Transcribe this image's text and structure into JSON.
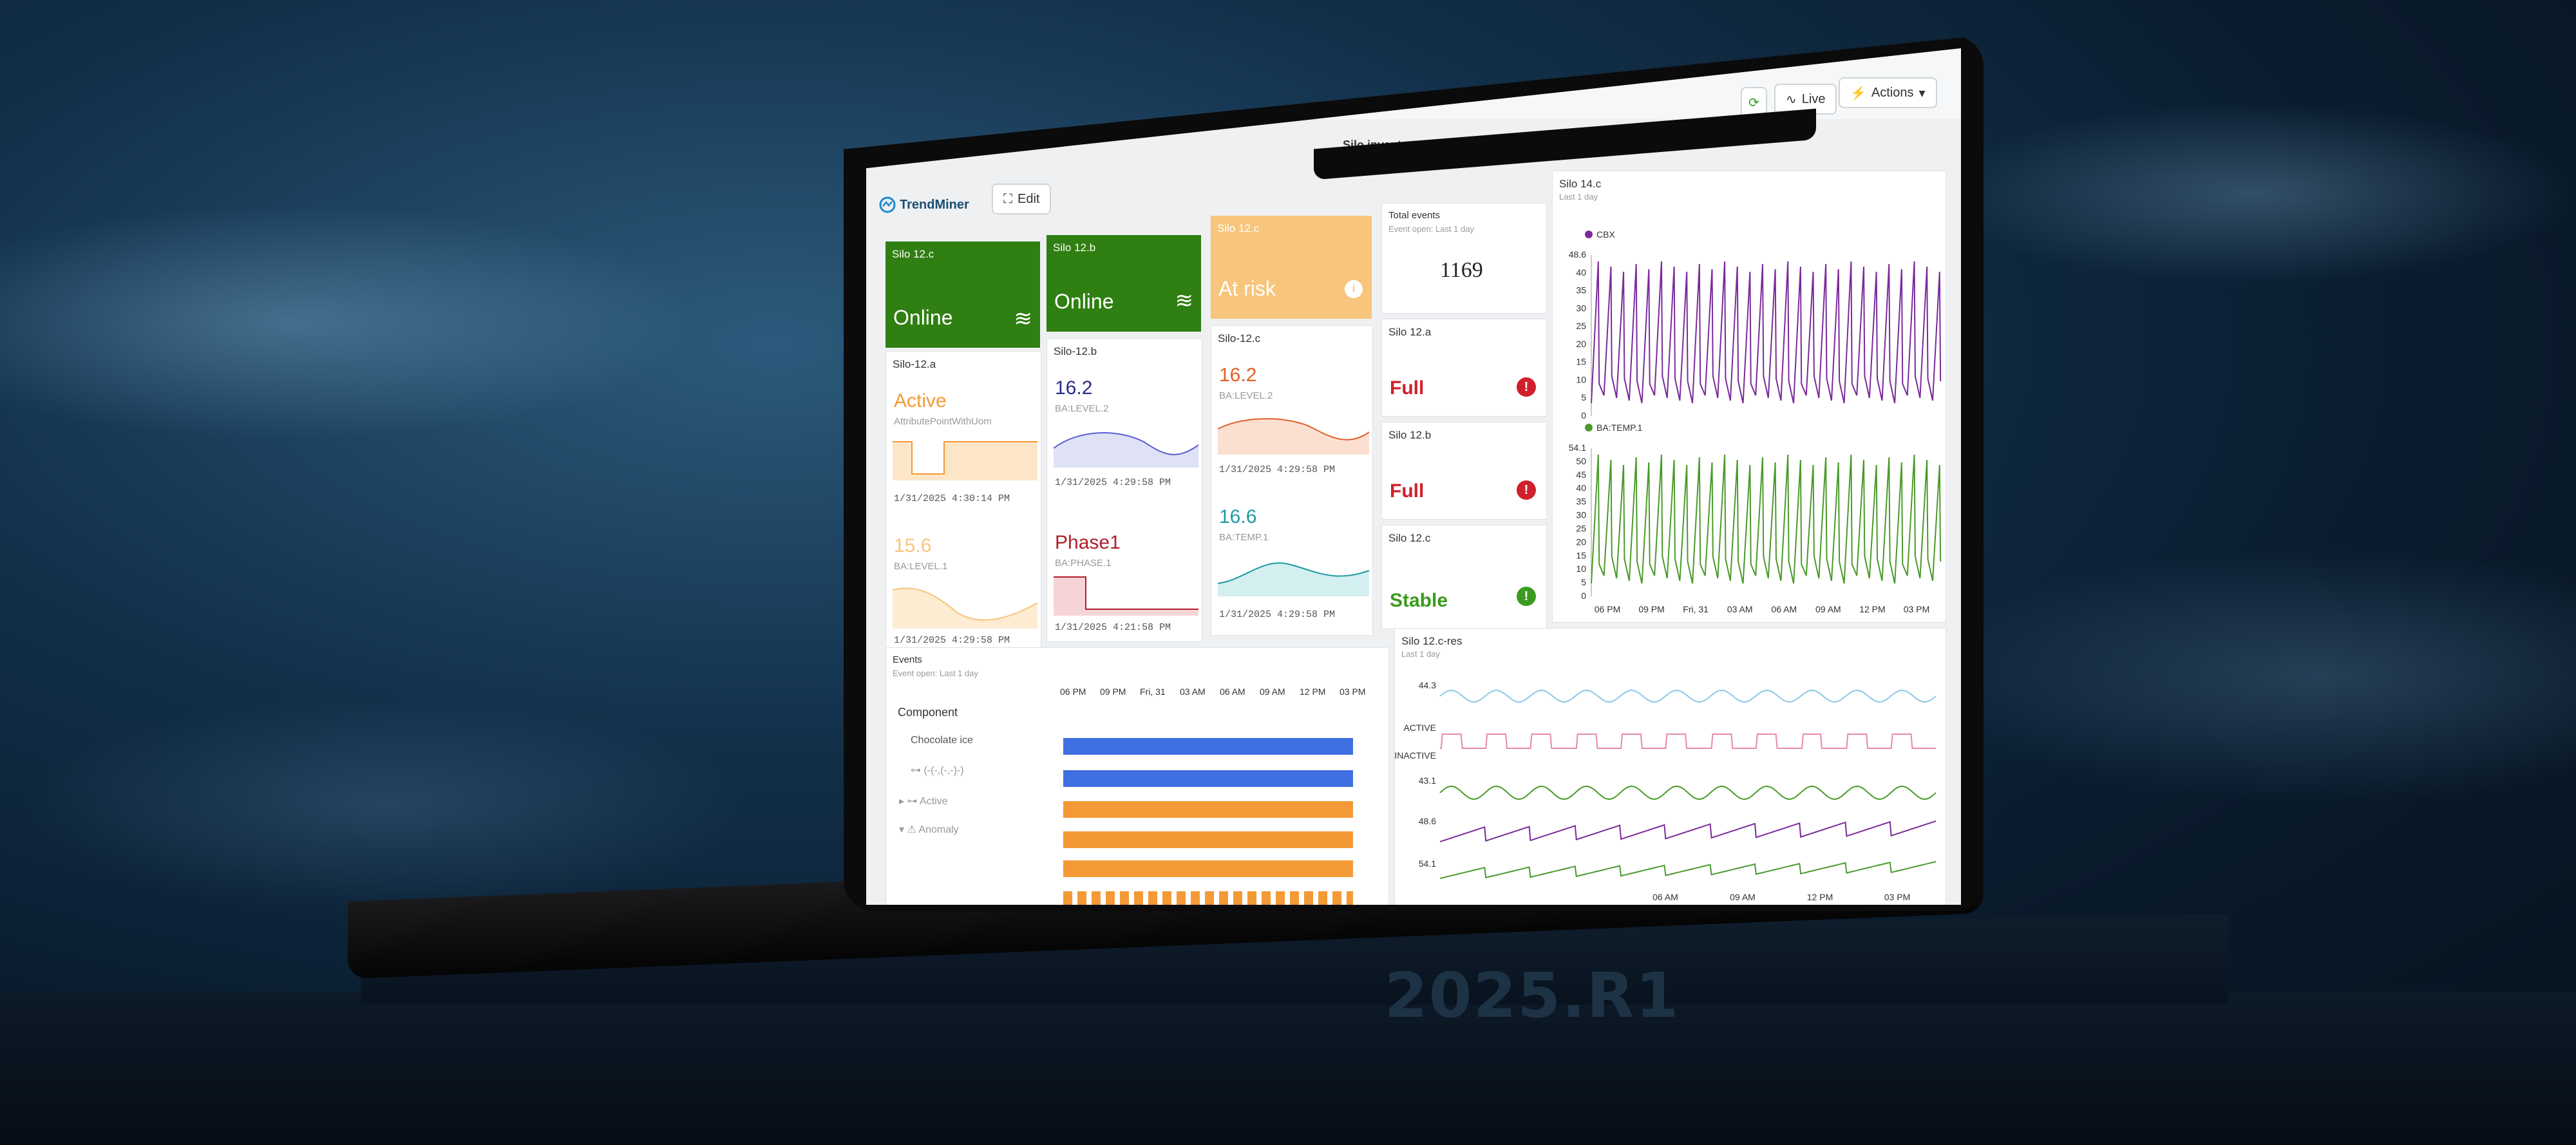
{
  "release": "2025.R1",
  "app": {
    "logo": "TrendMiner",
    "edit_label": "Edit",
    "dashboard_title": "Silo inventory",
    "live_label": "Live",
    "actions_label": "Actions",
    "icons": {
      "refresh": "refresh-icon",
      "live": "live-signal-icon",
      "actions": "lightning-icon",
      "edit": "grid-edit-icon"
    }
  },
  "colors": {
    "online": "#2f7f12",
    "at_risk": "#f8c57c",
    "alert": "#d0202b",
    "ok": "#3a9b1e",
    "purple": "#7a2a9a",
    "green": "#4a9a2a",
    "blue": "#3f6fe0",
    "orange": "#f39a36"
  },
  "status_tiles": [
    {
      "title": "Silo 12.c",
      "state": "Online"
    },
    {
      "title": "Silo 12.b",
      "state": "Online"
    },
    {
      "title": "Silo 12.c",
      "state": "At risk"
    }
  ],
  "value_tiles": {
    "silo12a": {
      "title": "Silo-12.a",
      "v1": "Active",
      "t1": "AttributePointWithUom",
      "ts1": "1/31/2025 4:30:14 PM",
      "v2": "15.6",
      "t2": "BA:LEVEL.1",
      "ts2": "1/31/2025 4:29:58 PM"
    },
    "silo12b": {
      "title": "Silo-12.b",
      "v1": "16.2",
      "t1": "BA:LEVEL.2",
      "ts1": "1/31/2025 4:29:58 PM",
      "v2": "Phase1",
      "t2": "BA:PHASE.1",
      "ts2": "1/31/2025 4:21:58 PM"
    },
    "silo12c": {
      "title": "Silo-12.c",
      "v1": "16.2",
      "t1": "BA:LEVEL.2",
      "ts1": "1/31/2025 4:29:58 PM",
      "v2": "16.6",
      "t2": "BA:TEMP.1",
      "ts2": "1/31/2025 4:29:58 PM"
    }
  },
  "total_events": {
    "title": "Total events",
    "subtitle": "Event open: Last 1 day",
    "value": "1169"
  },
  "alert_tiles": [
    {
      "title": "Silo 12.a",
      "state": "Full",
      "badge": "!"
    },
    {
      "title": "Silo 12.b",
      "state": "Full",
      "badge": "!"
    },
    {
      "title": "Silo 12.c",
      "state": "Stable",
      "badge": "!"
    }
  ],
  "events": {
    "title": "Events",
    "subtitle": "Event open: Last 1 day",
    "column": "Component",
    "rows": [
      "Chocolate ice",
      "(-(-,(-,-)-)",
      "Active",
      "Anomaly"
    ],
    "times": [
      "06 PM",
      "09 PM",
      "Fri, 31",
      "03 AM",
      "06 AM",
      "09 AM",
      "12 PM",
      "03 PM"
    ]
  },
  "chart_data": [
    {
      "type": "line",
      "title": "Silo 14.c",
      "subtitle": "Last 1 day",
      "series": [
        {
          "name": "CBX",
          "ylim": [
            0,
            48.6
          ],
          "ticks": [
            "48.6",
            "40",
            "35",
            "30",
            "25",
            "20",
            "15",
            "10",
            "5",
            "0"
          ]
        },
        {
          "name": "BA:TEMP.1",
          "ylim": [
            0,
            54.1
          ],
          "ticks": [
            "54.1",
            "50",
            "45",
            "40",
            "35",
            "30",
            "25",
            "20",
            "15",
            "10",
            "5",
            "0"
          ]
        }
      ],
      "x": [
        "06 PM",
        "09 PM",
        "Fri, 31",
        "03 AM",
        "06 AM",
        "09 AM",
        "12 PM",
        "03 PM"
      ]
    },
    {
      "type": "line",
      "title": "Silo 12.c-res",
      "subtitle": "Last 1 day",
      "labels": [
        "44.3",
        "ACTIVE",
        "INACTIVE",
        "43.1",
        "48.6",
        "54.1"
      ],
      "x": [
        "06 AM",
        "09 AM",
        "12 PM",
        "03 PM"
      ]
    }
  ]
}
